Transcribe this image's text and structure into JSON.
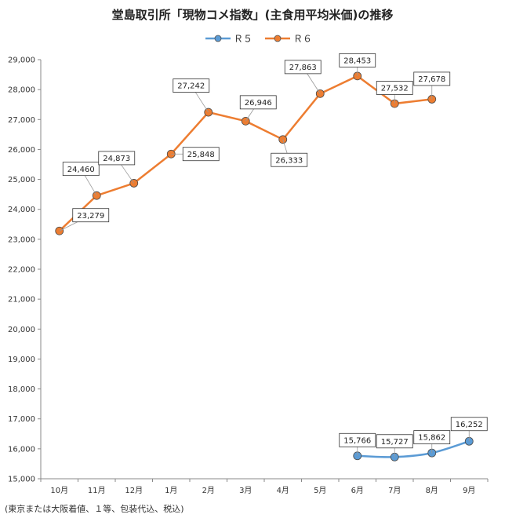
{
  "chart_data": {
    "type": "line",
    "title": "堂島取引所「現物コメ指数」(主食用平均米価)の推移",
    "categories": [
      "10月",
      "11月",
      "12月",
      "1月",
      "2月",
      "3月",
      "4月",
      "5月",
      "6月",
      "7月",
      "8月",
      "9月"
    ],
    "series": [
      {
        "name": "Ｒ５",
        "color": "#5b9bd5",
        "values": [
          null,
          null,
          null,
          null,
          null,
          null,
          null,
          null,
          15766,
          15727,
          15862,
          16252
        ],
        "labels": [
          "",
          "",
          "",
          "",
          "",
          "",
          "",
          "",
          "15,766",
          "15,727",
          "15,862",
          "16,252"
        ]
      },
      {
        "name": "Ｒ６",
        "color": "#ed7d31",
        "values": [
          23279,
          24460,
          24873,
          25848,
          27242,
          26946,
          26333,
          27863,
          28453,
          27532,
          27678,
          null
        ],
        "labels": [
          "23,279",
          "24,460",
          "24,873",
          "25,848",
          "27,242",
          "26,946",
          "26,333",
          "27,863",
          "28,453",
          "27,532",
          "27,678",
          ""
        ]
      }
    ],
    "ylim": [
      15000,
      29000
    ],
    "yticks": [
      15000,
      16000,
      17000,
      18000,
      19000,
      20000,
      21000,
      22000,
      23000,
      24000,
      25000,
      26000,
      27000,
      28000,
      29000
    ],
    "ytick_labels": [
      "15,000",
      "16,000",
      "17,000",
      "18,000",
      "19,000",
      "20,000",
      "21,000",
      "22,000",
      "23,000",
      "24,000",
      "25,000",
      "26,000",
      "27,000",
      "28,000",
      "29,000"
    ],
    "legend_position": "top-center",
    "grid": false,
    "footnote": "(東京または大阪着値、１等、包装代込、税込)"
  }
}
